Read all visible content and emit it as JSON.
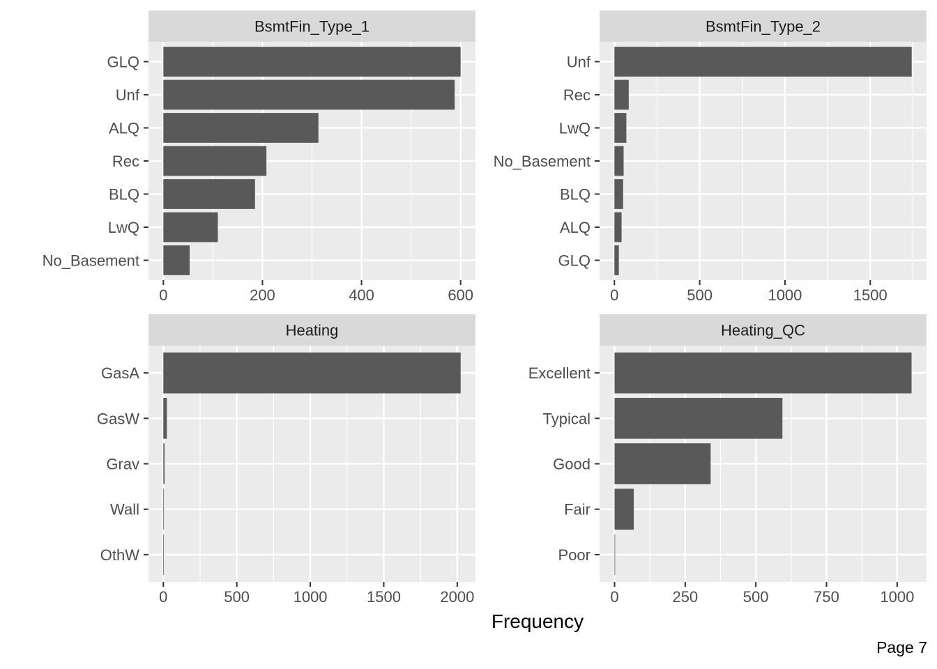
{
  "figure": {
    "xlabel": "Frequency",
    "page_label": "Page 7"
  },
  "colors": {
    "bar": "#595959",
    "panel_bg": "#ebebeb",
    "strip_bg": "#d9d9d9",
    "grid": "#ffffff",
    "tick": "#333333"
  },
  "chart_data": [
    {
      "type": "bar",
      "orientation": "horizontal",
      "title": "BsmtFin_Type_1",
      "categories": [
        "GLQ",
        "Unf",
        "ALQ",
        "Rec",
        "BLQ",
        "LwQ",
        "No_Basement"
      ],
      "values": [
        600,
        588,
        313,
        208,
        185,
        110,
        53
      ],
      "xlim": [
        -30,
        630
      ],
      "xticks": [
        0,
        200,
        400,
        600
      ],
      "xlabel": "Frequency",
      "grid": true
    },
    {
      "type": "bar",
      "orientation": "horizontal",
      "title": "BsmtFin_Type_2",
      "categories": [
        "Unf",
        "Rec",
        "LwQ",
        "No_Basement",
        "BLQ",
        "ALQ",
        "GLQ"
      ],
      "values": [
        1743,
        84,
        70,
        54,
        51,
        42,
        26
      ],
      "xlim": [
        -87,
        1830
      ],
      "xticks": [
        0,
        500,
        1000,
        1500
      ],
      "xlabel": "Frequency",
      "grid": true
    },
    {
      "type": "bar",
      "orientation": "horizontal",
      "title": "Heating",
      "categories": [
        "GasA",
        "GasW",
        "Grav",
        "Wall",
        "OthW"
      ],
      "values": [
        2023,
        24,
        8,
        4,
        2
      ],
      "xlim": [
        -101,
        2124
      ],
      "xticks": [
        0,
        500,
        1000,
        1500,
        2000
      ],
      "xlabel": "Frequency",
      "grid": true
    },
    {
      "type": "bar",
      "orientation": "horizontal",
      "title": "Heating_QC",
      "categories": [
        "Excellent",
        "Typical",
        "Good",
        "Fair",
        "Poor"
      ],
      "values": [
        1051,
        594,
        340,
        68,
        2
      ],
      "xlim": [
        -53,
        1104
      ],
      "xticks": [
        0,
        250,
        500,
        750,
        1000
      ],
      "xlabel": "Frequency",
      "grid": true
    }
  ]
}
